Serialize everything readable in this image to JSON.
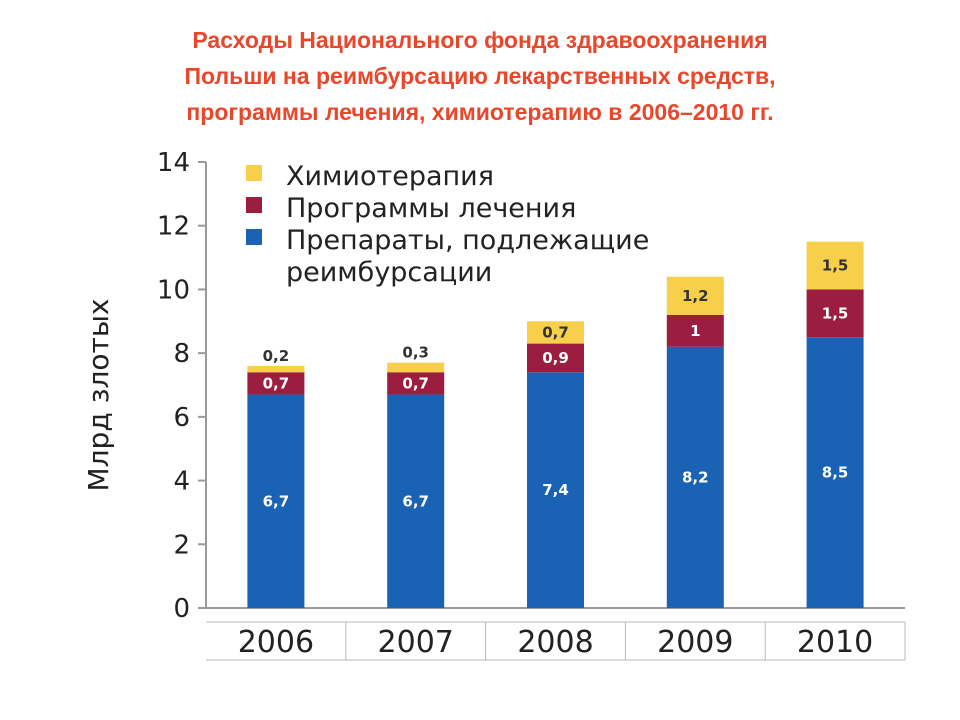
{
  "title": {
    "lines": [
      "Расходы Национального фонда здравоохранения",
      "Польши на реимбурсацию лекарственных средств,",
      "программы лечения, химиотерапию в 2006–2010 гг."
    ]
  },
  "chart_data": {
    "type": "bar",
    "stacked": true,
    "categories": [
      "2006",
      "2007",
      "2008",
      "2009",
      "2010"
    ],
    "ylabel": "Млрд злотых",
    "ylim": [
      0,
      14
    ],
    "yticks": [
      0,
      2,
      4,
      6,
      8,
      10,
      12,
      14
    ],
    "grid": false,
    "legend_position": "top-left",
    "series": [
      {
        "name_lines": [
          "Препараты, подлежащие",
          "реимбурсации"
        ],
        "color": "#1a63b4",
        "label_color": "#ffffff",
        "values": [
          6.7,
          6.7,
          7.4,
          8.2,
          8.5
        ],
        "labels": [
          "6,7",
          "6,7",
          "7,4",
          "8,2",
          "8,5"
        ]
      },
      {
        "name_lines": [
          "Программы лечения"
        ],
        "color": "#9b1d3f",
        "label_color": "#ffffff",
        "values": [
          0.7,
          0.7,
          0.9,
          1,
          1.5
        ],
        "labels": [
          "0,7",
          "0,7",
          "0,9",
          "1",
          "1,5"
        ]
      },
      {
        "name_lines": [
          "Химиотерапия"
        ],
        "color": "#f8cf4a",
        "label_color": "#333333",
        "values": [
          0.2,
          0.3,
          0.7,
          1.2,
          1.5
        ],
        "labels": [
          "0,2",
          "0,3",
          "0,7",
          "1,2",
          "1,5"
        ]
      }
    ]
  }
}
